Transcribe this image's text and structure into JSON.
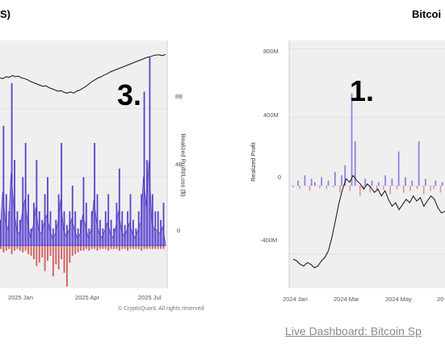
{
  "left_panel": {
    "title_fragment": "S)",
    "annotation": "3.",
    "footer": "© CryptoQuant. All rights reserved",
    "chart_data": {
      "type": "bar",
      "ylabel": "Realized Profit/Loss ($)",
      "y_ticks": [
        "0",
        "4B",
        "8B"
      ],
      "x_ticks": [
        "2025 Jan",
        "2025 Apr",
        "2025 Jul"
      ],
      "ylim": [
        -2.5,
        12
      ],
      "series": [
        {
          "name": "",
          "color": "#5b49c9",
          "values": [
            1.5,
            7,
            3,
            2,
            9.5,
            5,
            2,
            1.5,
            4,
            6,
            3,
            1,
            2.5,
            5,
            2,
            1.5,
            3,
            4,
            2,
            1,
            1.5,
            3,
            6,
            2,
            1.2,
            2,
            3.5,
            2,
            1,
            1.5,
            4,
            2.5,
            1,
            2,
            6,
            3,
            1.5,
            1,
            2,
            3,
            1.5,
            1,
            2.5,
            4.5,
            2,
            1.2,
            2,
            3,
            1.5,
            1,
            2,
            3,
            9,
            5,
            11,
            3,
            2,
            2,
            1.5,
            2.5
          ]
        },
        {
          "name": "",
          "color": "#d06060",
          "values": [
            -0.2,
            -0.4,
            -0.3,
            -0.2,
            -0.5,
            -0.3,
            -0.2,
            -0.3,
            -0.4,
            -0.3,
            -0.5,
            -0.6,
            -0.8,
            -1.2,
            -1,
            -0.7,
            -1.5,
            -0.9,
            -0.6,
            -1.8,
            -1.1,
            -1.4,
            -0.8,
            -1.6,
            -2.4,
            -1,
            -0.6,
            -0.5,
            -0.4,
            -0.3,
            -0.3,
            -0.2,
            -0.3,
            -0.2,
            -0.2,
            -0.3,
            -0.2,
            -0.2,
            -0.2,
            -0.3,
            -0.2,
            -0.2,
            -0.2,
            -0.3,
            -0.2,
            -0.2,
            -0.3,
            -0.2,
            -0.2,
            -0.2,
            -0.2,
            -0.3,
            -0.2,
            -0.2,
            -0.2,
            -0.2,
            -0.2,
            -0.2,
            -0.2,
            -0.2
          ]
        }
      ],
      "price_line": [
        0.58,
        0.57,
        0.6,
        0.59,
        0.62,
        0.6,
        0.61,
        0.58,
        0.57,
        0.55,
        0.52,
        0.5,
        0.48,
        0.46,
        0.44,
        0.45,
        0.42,
        0.4,
        0.38,
        0.36,
        0.37,
        0.34,
        0.33,
        0.35,
        0.33,
        0.36,
        0.38,
        0.41,
        0.44,
        0.48,
        0.52,
        0.55,
        0.58,
        0.6,
        0.63,
        0.65,
        0.68,
        0.7,
        0.72,
        0.74,
        0.76,
        0.78,
        0.8,
        0.82,
        0.84,
        0.86,
        0.88,
        0.9,
        0.92,
        0.93,
        0.95,
        0.96,
        0.96,
        0.95,
        0.97
      ]
    }
  },
  "right_panel": {
    "title_fragment": "Bitcoi",
    "annotation": "1.",
    "link_text": "Live Dashboard: Bitcoin Sp",
    "chart_data": {
      "type": "bar",
      "ylabel": "Realized Profit",
      "y_ticks": [
        "800M",
        "400M",
        "0",
        "-400M"
      ],
      "x_ticks": [
        "2024 Jan",
        "2024 Mar",
        "2024 May",
        "20"
      ],
      "ylim": [
        -600,
        850
      ],
      "series": [
        {
          "name": "",
          "color": "#8a7ae0",
          "values": [
            0,
            0,
            30,
            0,
            60,
            0,
            40,
            20,
            0,
            50,
            0,
            30,
            0,
            80,
            0,
            60,
            120,
            0,
            540,
            260,
            0,
            0,
            40,
            0,
            30,
            0,
            20,
            0,
            60,
            0,
            40,
            0,
            200,
            0,
            50,
            0,
            30,
            0,
            260,
            0,
            40,
            0,
            0,
            30,
            0,
            20
          ]
        },
        {
          "name": "",
          "color": "#e08a9a",
          "values": [
            -10,
            0,
            -20,
            0,
            0,
            -30,
            0,
            0,
            -15,
            0,
            -20,
            0,
            -10,
            0,
            -40,
            0,
            0,
            -30,
            0,
            0,
            -60,
            -20,
            0,
            -40,
            0,
            -30,
            0,
            -25,
            0,
            -50,
            0,
            -20,
            0,
            -40,
            0,
            -30,
            0,
            -20,
            0,
            -50,
            0,
            -30,
            -20,
            0,
            -40,
            0
          ]
        }
      ],
      "price_line": [
        -430,
        -440,
        -460,
        -470,
        -450,
        -460,
        -480,
        -470,
        -440,
        -420,
        -380,
        -300,
        -200,
        -100,
        -20,
        40,
        20,
        60,
        30,
        10,
        -20,
        10,
        -10,
        -40,
        -20,
        -60,
        -30,
        -80,
        -120,
        -100,
        -140,
        -110,
        -80,
        -100,
        -60,
        -90,
        -70,
        -120,
        -90,
        -60,
        -80,
        -130,
        -160,
        -150
      ]
    }
  }
}
